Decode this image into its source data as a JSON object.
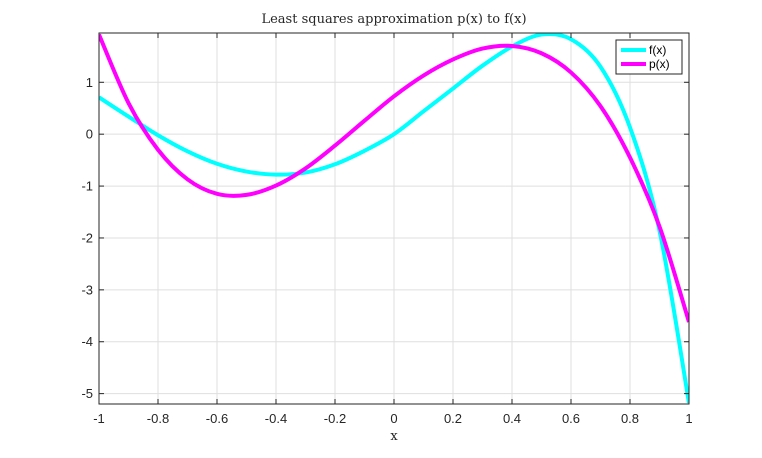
{
  "chart_data": {
    "type": "line",
    "title": "Least squares approximation p(x) to f(x)",
    "xlabel": "x",
    "ylabel": "",
    "xlim": [
      -1,
      1
    ],
    "ylim": [
      -5.2,
      1.95
    ],
    "xticks": [
      -1,
      -0.8,
      -0.6,
      -0.4,
      -0.2,
      0,
      0.2,
      0.4,
      0.6,
      0.8,
      1
    ],
    "xtick_labels": [
      "-1",
      "-0.8",
      "-0.6",
      "-0.4",
      "-0.2",
      "0",
      "0.2",
      "0.4",
      "0.6",
      "0.8",
      "1"
    ],
    "yticks": [
      -5,
      -4,
      -3,
      -2,
      -1,
      0,
      1
    ],
    "ytick_labels": [
      "-5",
      "-4",
      "-3",
      "-2",
      "-1",
      "0",
      "1"
    ],
    "grid": true,
    "legend_location": "top-right",
    "series": [
      {
        "name": "f(x)",
        "color": "#00ffff",
        "x": [
          -1,
          -0.9,
          -0.8,
          -0.7,
          -0.6,
          -0.5,
          -0.4,
          -0.3,
          -0.2,
          -0.1,
          0,
          0.1,
          0.2,
          0.3,
          0.4,
          0.5,
          0.6,
          0.7,
          0.8,
          0.9,
          1
        ],
        "y": [
          0.71,
          0.34,
          -0.02,
          -0.33,
          -0.57,
          -0.72,
          -0.78,
          -0.74,
          -0.58,
          -0.32,
          0,
          0.44,
          0.88,
          1.32,
          1.69,
          1.92,
          1.83,
          1.3,
          0.13,
          -1.86,
          -5.18
        ]
      },
      {
        "name": "p(x)",
        "color": "#ff00ff",
        "x": [
          -1,
          -0.9,
          -0.8,
          -0.7,
          -0.6,
          -0.5,
          -0.4,
          -0.3,
          -0.2,
          -0.1,
          0,
          0.1,
          0.2,
          0.3,
          0.4,
          0.5,
          0.6,
          0.7,
          0.8,
          0.9,
          1
        ],
        "y": [
          1.92,
          0.6,
          -0.3,
          -0.87,
          -1.15,
          -1.17,
          -0.99,
          -0.66,
          -0.22,
          0.26,
          0.73,
          1.13,
          1.44,
          1.65,
          1.7,
          1.56,
          1.19,
          0.54,
          -0.45,
          -1.78,
          -3.62
        ]
      }
    ]
  }
}
